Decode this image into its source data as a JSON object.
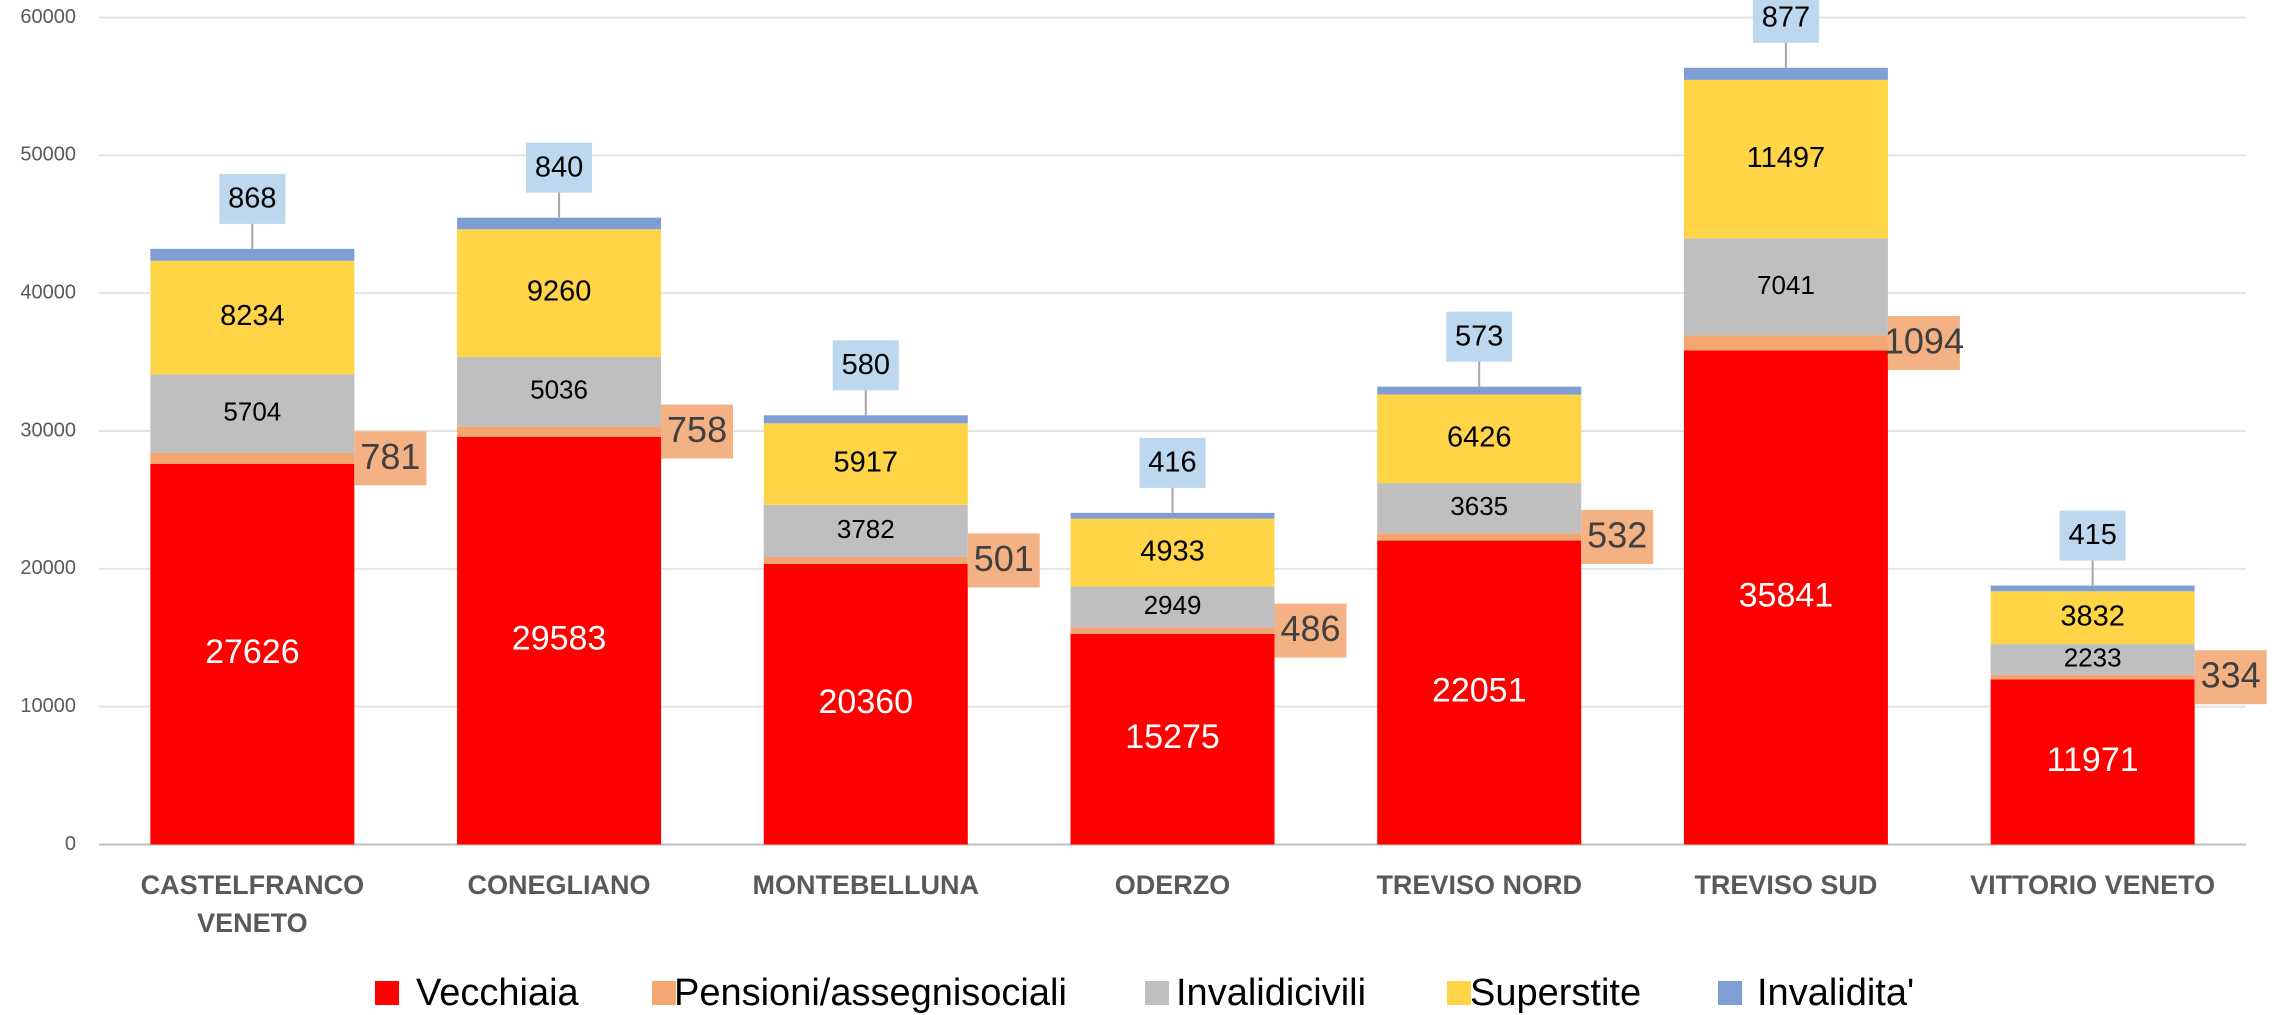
{
  "chart_data": {
    "type": "stacked_bar",
    "categories": [
      "CASTELFRANCO VENETO",
      "CONEGLIANO",
      "MONTEBELLUNA",
      "ODERZO",
      "TREVISO NORD",
      "TREVISO SUD",
      "VITTORIO VENETO"
    ],
    "series": [
      {
        "name": "Vecchiaia",
        "color": "#ff0000",
        "values": [
          27626,
          29583,
          20360,
          15275,
          22051,
          35841,
          11971
        ]
      },
      {
        "name": "Pensioni/assegnisociali",
        "color": "#f4a672",
        "values": [
          781,
          758,
          501,
          486,
          532,
          1094,
          334
        ]
      },
      {
        "name": "Invalidicivili",
        "color": "#bfbfbf",
        "values": [
          5704,
          5036,
          3782,
          2949,
          3635,
          7041,
          2233
        ]
      },
      {
        "name": "Superstite",
        "color": "#ffd447",
        "values": [
          8234,
          9260,
          5917,
          4933,
          6426,
          11497,
          3832
        ]
      },
      {
        "name": "Invalidita'",
        "color": "#7f9fd4",
        "values": [
          868,
          840,
          580,
          416,
          573,
          877,
          415
        ]
      }
    ],
    "ylim": [
      0,
      60000
    ],
    "yticks": [
      0,
      10000,
      20000,
      30000,
      40000,
      50000,
      60000
    ],
    "grid": true,
    "legend": "bottom"
  }
}
